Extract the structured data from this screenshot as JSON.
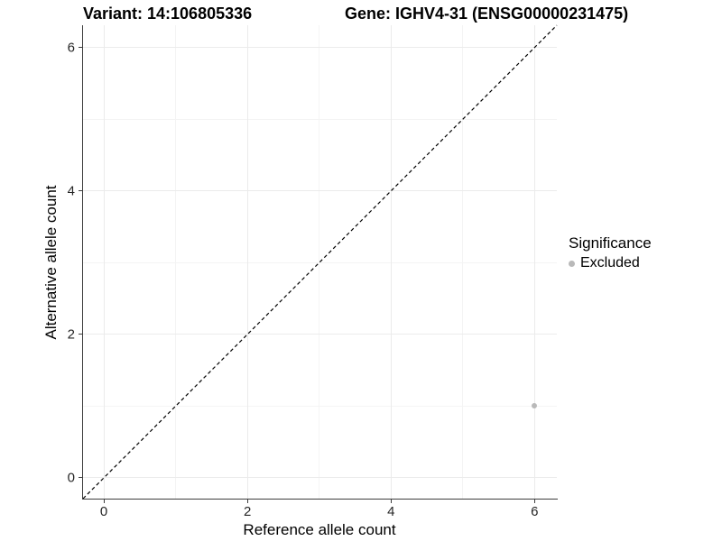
{
  "header": {
    "title_left": "Variant: 14:106805336",
    "title_right": "Gene: IGHV4-31 (ENSG00000231475)"
  },
  "chart_data": {
    "type": "scatter",
    "title_left": "Variant: 14:106805336",
    "title_right": "Gene: IGHV4-31 (ENSG00000231475)",
    "xlabel": "Reference allele count",
    "ylabel": "Alternative allele count",
    "xlim": [
      -0.29,
      6.31
    ],
    "ylim": [
      -0.29,
      6.31
    ],
    "x_major_ticks": [
      0,
      2,
      4,
      6
    ],
    "y_major_ticks": [
      0,
      2,
      4,
      6
    ],
    "x_minor_ticks": [
      1,
      3,
      5
    ],
    "y_minor_ticks": [
      1,
      3,
      5
    ],
    "grid": true,
    "identity_line": {
      "style": "dashed",
      "x1": -0.29,
      "y1": -0.29,
      "x2": 6.31,
      "y2": 6.31,
      "color": "#000000"
    },
    "series": [
      {
        "name": "Excluded",
        "color": "#b9b9b9",
        "points": [
          {
            "x": 6,
            "y": 1
          }
        ]
      }
    ],
    "legend": {
      "title": "Significance",
      "position": "right",
      "items": [
        {
          "label": "Excluded",
          "color": "#b9b9b9"
        }
      ]
    }
  },
  "colors": {
    "background": "#ffffff",
    "grid_major": "#ebebeb",
    "grid_minor": "#f4f4f4",
    "axis_line": "#3d3d3d",
    "text": "#000000",
    "point": "#b9b9b9"
  }
}
